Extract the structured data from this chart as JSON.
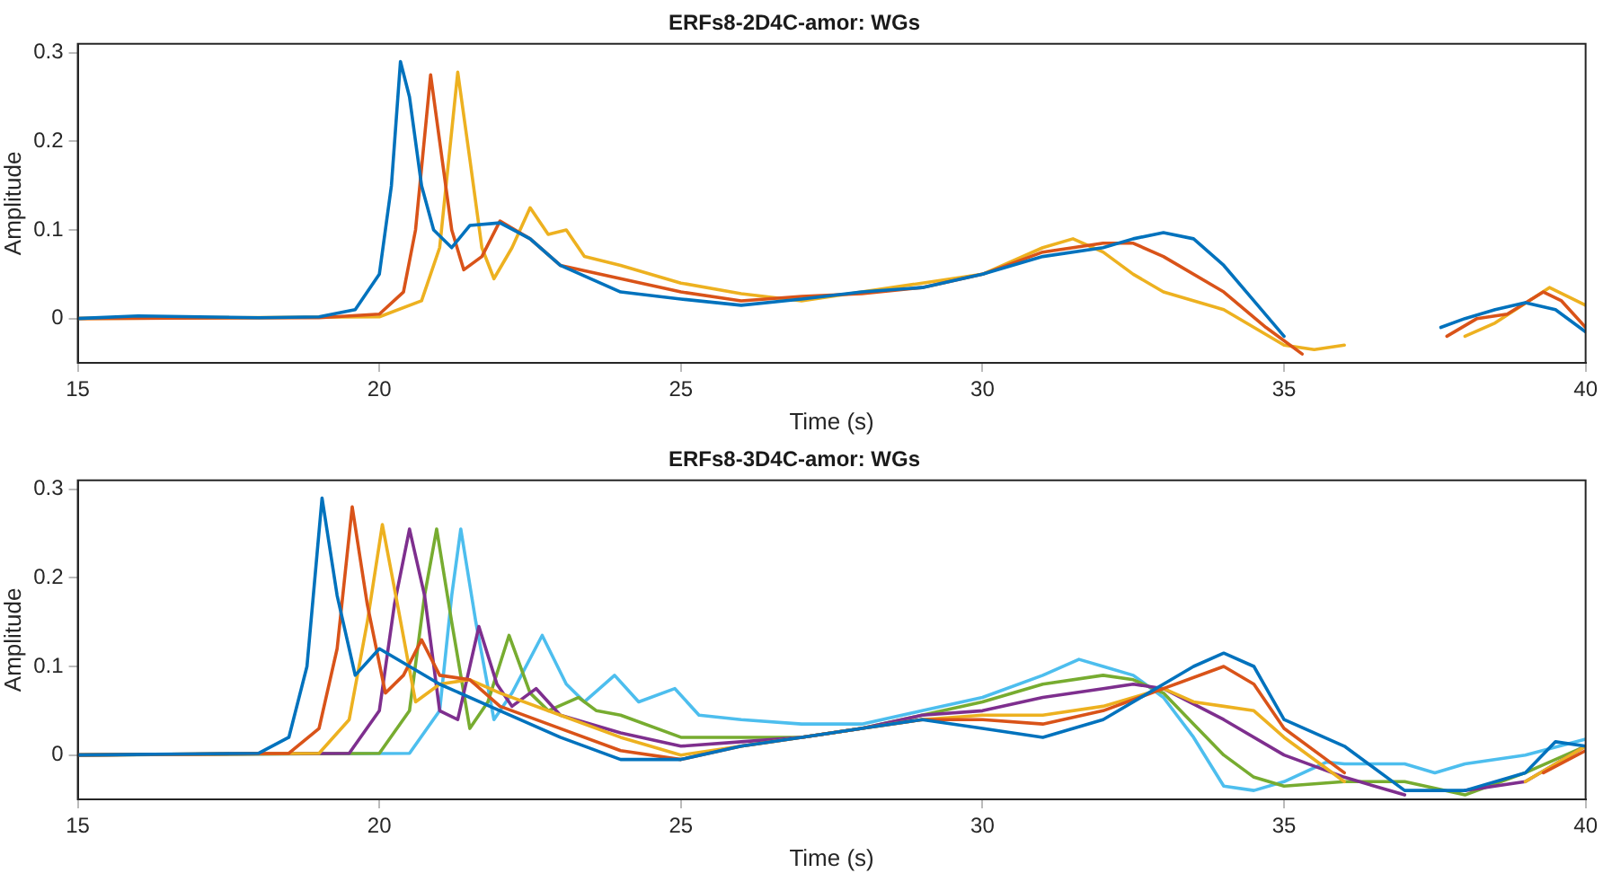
{
  "chart_data": [
    {
      "type": "line",
      "title": "ERFs8-2D4C-amor: WGs",
      "xlabel": "Time (s)",
      "ylabel": "Amplitude",
      "xlim": [
        15,
        40
      ],
      "xticks": [
        15,
        20,
        25,
        30,
        35,
        40
      ],
      "ylim": [
        -0.05,
        0.31
      ],
      "yticks": [
        0,
        0.1,
        0.2,
        0.3
      ],
      "series": [
        {
          "color": "#0072bd",
          "x": [
            15,
            16,
            18,
            19,
            19.6,
            20,
            20.2,
            20.35,
            20.5,
            20.7,
            20.9,
            21.2,
            21.5,
            22,
            22.5,
            23,
            24,
            25,
            26,
            27,
            28,
            29,
            30,
            31,
            32,
            32.5,
            33,
            33.5,
            34,
            34.5,
            35,
            35.3,
            36,
            37.3,
            37.6,
            38,
            38.5,
            39,
            39.5,
            40
          ],
          "values": [
            0,
            0.003,
            0.001,
            0.002,
            0.01,
            0.05,
            0.15,
            0.29,
            0.25,
            0.15,
            0.1,
            0.08,
            0.105,
            0.108,
            0.09,
            0.06,
            0.03,
            0.022,
            0.015,
            0.022,
            0.03,
            0.035,
            0.05,
            0.07,
            0.08,
            0.09,
            0.097,
            0.09,
            0.06,
            0.02,
            -0.02,
            null,
            null,
            null,
            -0.01,
            0,
            0.01,
            0.018,
            0.01,
            -0.015
          ]
        },
        {
          "color": "#d95319",
          "x": [
            15,
            19,
            20,
            20.4,
            20.6,
            20.85,
            21,
            21.2,
            21.4,
            21.7,
            22,
            22.5,
            23,
            24,
            25,
            26,
            27,
            28,
            29,
            30,
            31,
            32,
            32.5,
            33,
            34,
            34.7,
            35.3,
            35.6,
            36.5,
            37.3,
            37.7,
            38.2,
            38.7,
            39.3,
            39.6,
            40
          ],
          "values": [
            0,
            0.001,
            0.005,
            0.03,
            0.1,
            0.275,
            0.2,
            0.1,
            0.055,
            0.07,
            0.11,
            0.09,
            0.06,
            0.045,
            0.03,
            0.02,
            0.025,
            0.028,
            0.035,
            0.05,
            0.075,
            0.085,
            0.085,
            0.07,
            0.03,
            -0.01,
            -0.04,
            null,
            null,
            null,
            -0.02,
            0,
            0.005,
            0.03,
            0.02,
            -0.01
          ]
        },
        {
          "color": "#edb120",
          "x": [
            15,
            20,
            20.7,
            21,
            21.3,
            21.5,
            21.7,
            21.9,
            22.2,
            22.5,
            22.8,
            23.1,
            23.4,
            24,
            25,
            26,
            27,
            28,
            29,
            30,
            31,
            31.5,
            32,
            32.5,
            33,
            34,
            35,
            35.5,
            36,
            36.6,
            37,
            37.4,
            38,
            38.5,
            39.4,
            40
          ],
          "values": [
            0,
            0.002,
            0.02,
            0.08,
            0.278,
            0.18,
            0.08,
            0.045,
            0.08,
            0.125,
            0.095,
            0.1,
            0.07,
            0.06,
            0.04,
            0.028,
            0.02,
            0.03,
            0.04,
            0.05,
            0.08,
            0.09,
            0.075,
            0.05,
            0.03,
            0.01,
            -0.03,
            -0.035,
            -0.03,
            null,
            null,
            null,
            -0.02,
            -0.005,
            0.035,
            0.015
          ]
        }
      ]
    },
    {
      "type": "line",
      "title": "ERFs8-3D4C-amor: WGs",
      "xlabel": "Time (s)",
      "ylabel": "Amplitude",
      "xlim": [
        15,
        40
      ],
      "xticks": [
        15,
        20,
        25,
        30,
        35,
        40
      ],
      "ylim": [
        -0.05,
        0.31
      ],
      "yticks": [
        0,
        0.1,
        0.2,
        0.3
      ],
      "series": [
        {
          "color": "#0072bd",
          "x": [
            15,
            18,
            18.5,
            18.8,
            19.05,
            19.3,
            19.6,
            20,
            20.5,
            21,
            22,
            23,
            24,
            25,
            26,
            27,
            28,
            29,
            30,
            31,
            32,
            33,
            33.5,
            34,
            34.5,
            35,
            36,
            37,
            38,
            39,
            39.5,
            40
          ],
          "values": [
            0,
            0.002,
            0.02,
            0.1,
            0.29,
            0.18,
            0.09,
            0.12,
            0.1,
            0.08,
            0.05,
            0.02,
            -0.005,
            -0.005,
            0.01,
            0.02,
            0.03,
            0.04,
            0.03,
            0.02,
            0.04,
            0.08,
            0.1,
            0.115,
            0.1,
            0.04,
            0.01,
            -0.04,
            -0.04,
            -0.02,
            0.015,
            0.01
          ]
        },
        {
          "color": "#d95319",
          "x": [
            15,
            18.5,
            19,
            19.3,
            19.55,
            19.8,
            20.1,
            20.4,
            20.7,
            21,
            21.5,
            22,
            23,
            24,
            25,
            26,
            27,
            28,
            29,
            30,
            31,
            32,
            33,
            34,
            34.5,
            35,
            36,
            36.7,
            37.5,
            38.8,
            39.3,
            40
          ],
          "values": [
            0,
            0.002,
            0.03,
            0.12,
            0.28,
            0.17,
            0.07,
            0.09,
            0.13,
            0.09,
            0.085,
            0.055,
            0.03,
            0.005,
            -0.005,
            0.01,
            0.02,
            0.03,
            0.04,
            0.04,
            0.035,
            0.05,
            0.075,
            0.1,
            0.08,
            0.03,
            -0.02,
            null,
            null,
            null,
            -0.02,
            0.005
          ]
        },
        {
          "color": "#edb120",
          "x": [
            15,
            19,
            19.5,
            19.8,
            20.05,
            20.3,
            20.6,
            21,
            21.5,
            22,
            23,
            24,
            25,
            26,
            27,
            28,
            29,
            30,
            31,
            32,
            33,
            33.5,
            34,
            34.5,
            35,
            36,
            36.6,
            37.5,
            38.5,
            39,
            40
          ],
          "values": [
            0,
            0.002,
            0.04,
            0.15,
            0.26,
            0.17,
            0.06,
            0.08,
            0.085,
            0.07,
            0.045,
            0.02,
            0,
            0.01,
            0.02,
            0.03,
            0.04,
            0.045,
            0.045,
            0.055,
            0.075,
            0.06,
            0.055,
            0.05,
            0.02,
            -0.03,
            null,
            null,
            null,
            -0.03,
            0.01
          ]
        },
        {
          "color": "#7e2f8e",
          "x": [
            15,
            19.5,
            20,
            20.25,
            20.5,
            20.75,
            21,
            21.3,
            21.65,
            21.95,
            22.2,
            22.6,
            23,
            24,
            25,
            26,
            27,
            28,
            29,
            30,
            31,
            32,
            32.5,
            33,
            34,
            35,
            36,
            37,
            37.5,
            38,
            39,
            40
          ],
          "values": [
            0,
            0.002,
            0.05,
            0.17,
            0.255,
            0.18,
            0.05,
            0.04,
            0.145,
            0.08,
            0.055,
            0.075,
            0.045,
            0.025,
            0.01,
            0.015,
            0.02,
            0.03,
            0.045,
            0.05,
            0.065,
            0.075,
            0.08,
            0.075,
            0.04,
            0,
            -0.025,
            -0.045,
            null,
            -0.04,
            -0.03,
            0.01
          ]
        },
        {
          "color": "#77ac30",
          "x": [
            15,
            20,
            20.5,
            20.75,
            20.95,
            21.2,
            21.5,
            21.8,
            22.15,
            22.5,
            22.8,
            23.3,
            23.6,
            24,
            25,
            26,
            27,
            28,
            29,
            30,
            31,
            32,
            32.5,
            33,
            33.5,
            34,
            34.5,
            35,
            36,
            37,
            38,
            39,
            40
          ],
          "values": [
            0,
            0.002,
            0.05,
            0.18,
            0.255,
            0.15,
            0.03,
            0.06,
            0.135,
            0.07,
            0.05,
            0.065,
            0.05,
            0.045,
            0.02,
            0.02,
            0.02,
            0.03,
            0.045,
            0.06,
            0.08,
            0.09,
            0.085,
            0.07,
            0.035,
            0,
            -0.025,
            -0.035,
            -0.03,
            -0.03,
            -0.045,
            -0.02,
            0.01
          ]
        },
        {
          "color": "#4dbeee",
          "x": [
            15,
            20.5,
            21,
            21.2,
            21.35,
            21.6,
            21.9,
            22.2,
            22.7,
            23.1,
            23.4,
            23.9,
            24.3,
            24.9,
            25.3,
            26,
            27,
            28,
            29,
            30,
            31,
            31.6,
            32,
            32.5,
            33,
            33.5,
            34,
            34.5,
            35,
            35.7,
            36,
            37,
            37.5,
            38,
            39,
            40
          ],
          "values": [
            0,
            0.002,
            0.05,
            0.18,
            0.255,
            0.15,
            0.04,
            0.07,
            0.135,
            0.08,
            0.06,
            0.09,
            0.06,
            0.075,
            0.045,
            0.04,
            0.035,
            0.035,
            0.05,
            0.065,
            0.09,
            0.108,
            0.1,
            0.09,
            0.065,
            0.02,
            -0.035,
            -0.04,
            -0.03,
            -0.008,
            -0.01,
            -0.01,
            -0.02,
            -0.01,
            0,
            0.018
          ]
        }
      ]
    }
  ]
}
